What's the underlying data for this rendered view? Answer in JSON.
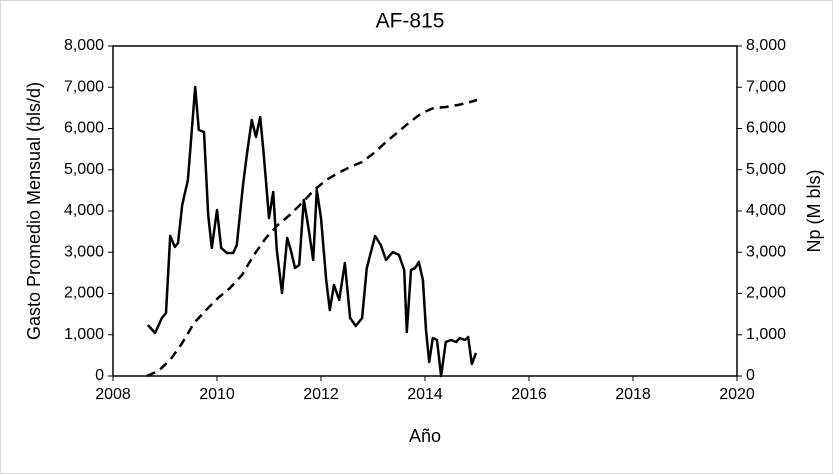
{
  "chart_data": {
    "type": "line",
    "title": "AF-815",
    "x_label": "Año",
    "y_label": "Gasto  Promedio Mensual (bls/d)",
    "y2_label": "Np (M bls)",
    "xlim": [
      2008,
      2020
    ],
    "xticks": [
      2008,
      2010,
      2012,
      2014,
      2016,
      2018,
      2020
    ],
    "ylim": [
      0,
      8000
    ],
    "yticks": [
      0,
      {
        "value": 1000,
        "label": "1,000"
      },
      {
        "value": 2000,
        "label": "2,000"
      },
      {
        "value": 3000,
        "label": "3,000"
      },
      {
        "value": 4000,
        "label": "4,000"
      },
      {
        "value": 5000,
        "label": "5,000"
      },
      {
        "value": 6000,
        "label": "6,000"
      },
      {
        "value": 7000,
        "label": "7,000"
      },
      {
        "value": 8000,
        "label": "8,000"
      }
    ],
    "y2lim": [
      0,
      8000
    ],
    "y2ticks": [
      0,
      {
        "value": 1000,
        "label": "1,000"
      },
      {
        "value": 2000,
        "label": "2,000"
      },
      {
        "value": 3000,
        "label": "3,000"
      },
      {
        "value": 4000,
        "label": "4,000"
      },
      {
        "value": 5000,
        "label": "5,000"
      },
      {
        "value": 6000,
        "label": "6,000"
      },
      {
        "value": 7000,
        "label": "7,000"
      },
      {
        "value": 8000,
        "label": "8,000"
      }
    ],
    "grid": false,
    "series": [
      {
        "color": "#000000",
        "dash": "solid",
        "axis": "y",
        "x": [
          2008.67,
          2008.81,
          2008.94,
          2009.02,
          2009.1,
          2009.19,
          2009.25,
          2009.33,
          2009.44,
          2009.58,
          2009.65,
          2009.75,
          2009.83,
          2009.9,
          2010.0,
          2010.08,
          2010.19,
          2010.31,
          2010.38,
          2010.5,
          2010.58,
          2010.67,
          2010.75,
          2010.83,
          2010.9,
          2011.0,
          2011.08,
          2011.15,
          2011.25,
          2011.35,
          2011.42,
          2011.5,
          2011.58,
          2011.67,
          2011.75,
          2011.85,
          2011.92,
          2012.0,
          2012.1,
          2012.17,
          2012.25,
          2012.35,
          2012.46,
          2012.56,
          2012.67,
          2012.79,
          2012.88,
          2013.04,
          2013.15,
          2013.25,
          2013.38,
          2013.5,
          2013.6,
          2013.65,
          2013.73,
          2013.81,
          2013.88,
          2013.96,
          2014.02,
          2014.08,
          2014.15,
          2014.23,
          2014.31,
          2014.4,
          2014.5,
          2014.6,
          2014.67,
          2014.77,
          2014.83,
          2014.9,
          2014.98
        ],
        "values": [
          1236,
          1042,
          1406,
          1527,
          3394,
          3127,
          3224,
          4145,
          4752,
          7006,
          5964,
          5915,
          3903,
          3103,
          4024,
          3103,
          2982,
          2982,
          3176,
          4630,
          5430,
          6206,
          5794,
          6279,
          5358,
          3830,
          4461,
          3055,
          2012,
          3345,
          3055,
          2618,
          2691,
          4267,
          3661,
          2812,
          4509,
          3830,
          2327,
          1600,
          2206,
          1842,
          2739,
          1406,
          1212,
          1406,
          2618,
          3394,
          3176,
          2812,
          3006,
          2933,
          2570,
          1067,
          2570,
          2618,
          2764,
          2327,
          1115,
          339,
          921,
          873,
          0,
          824,
          873,
          824,
          921,
          873,
          945,
          291,
          558
        ]
      },
      {
        "color": "#000000",
        "dash": "dashed",
        "axis": "y2",
        "x": [
          2008.65,
          2008.87,
          2009.1,
          2009.33,
          2009.56,
          2009.79,
          2010.02,
          2010.25,
          2010.48,
          2010.71,
          2010.94,
          2011.17,
          2011.4,
          2011.63,
          2011.87,
          2012.1,
          2012.33,
          2012.56,
          2012.79,
          2013.02,
          2013.25,
          2013.48,
          2013.71,
          2013.94,
          2014.17,
          2014.4,
          2014.63,
          2014.87,
          2015.0
        ],
        "values": [
          0,
          121,
          388,
          800,
          1285,
          1600,
          1891,
          2133,
          2448,
          2933,
          3345,
          3661,
          3903,
          4194,
          4509,
          4752,
          4921,
          5067,
          5188,
          5406,
          5673,
          5915,
          6158,
          6376,
          6497,
          6521,
          6570,
          6642,
          6691
        ]
      }
    ]
  }
}
